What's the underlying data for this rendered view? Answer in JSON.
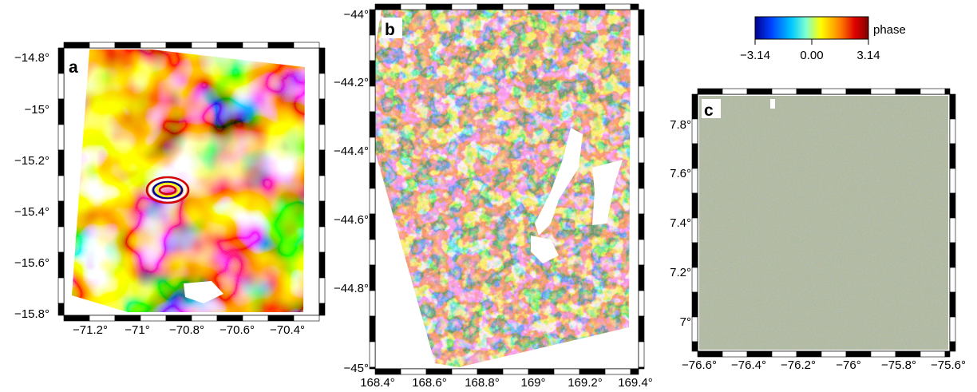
{
  "panels": [
    {
      "label": "a",
      "y_ticks": [
        "−14.8°",
        "−15°",
        "−15.2°",
        "−15.4°",
        "−15.6°",
        "−15.8°"
      ],
      "x_ticks": [
        "−71.2°",
        "−71°",
        "−70.8°",
        "−70.6°",
        "−70.4°"
      ]
    },
    {
      "label": "b",
      "y_ticks": [
        "−44°",
        "−44.2°",
        "−44.4°",
        "−44.6°",
        "−44.8°",
        "−45°"
      ],
      "x_ticks": [
        "168.4°",
        "168.6°",
        "168.8°",
        "169°",
        "169.2°",
        "169.4°"
      ]
    },
    {
      "label": "c",
      "y_ticks": [
        "7.8°",
        "7.6°",
        "7.4°",
        "7.2°",
        "7°"
      ],
      "x_ticks": [
        "−76.6°",
        "−76.4°",
        "−76.2°",
        "−76°",
        "−75.8°",
        "−75.6°"
      ]
    }
  ],
  "colorbar": {
    "title": "phase",
    "ticks": [
      "−3.14",
      "0.00",
      "3.14"
    ],
    "colors": [
      "#00008f",
      "#0040ff",
      "#00c8ff",
      "#80ffd0",
      "#ffff00",
      "#ff8000",
      "#e00000",
      "#800000"
    ]
  }
}
